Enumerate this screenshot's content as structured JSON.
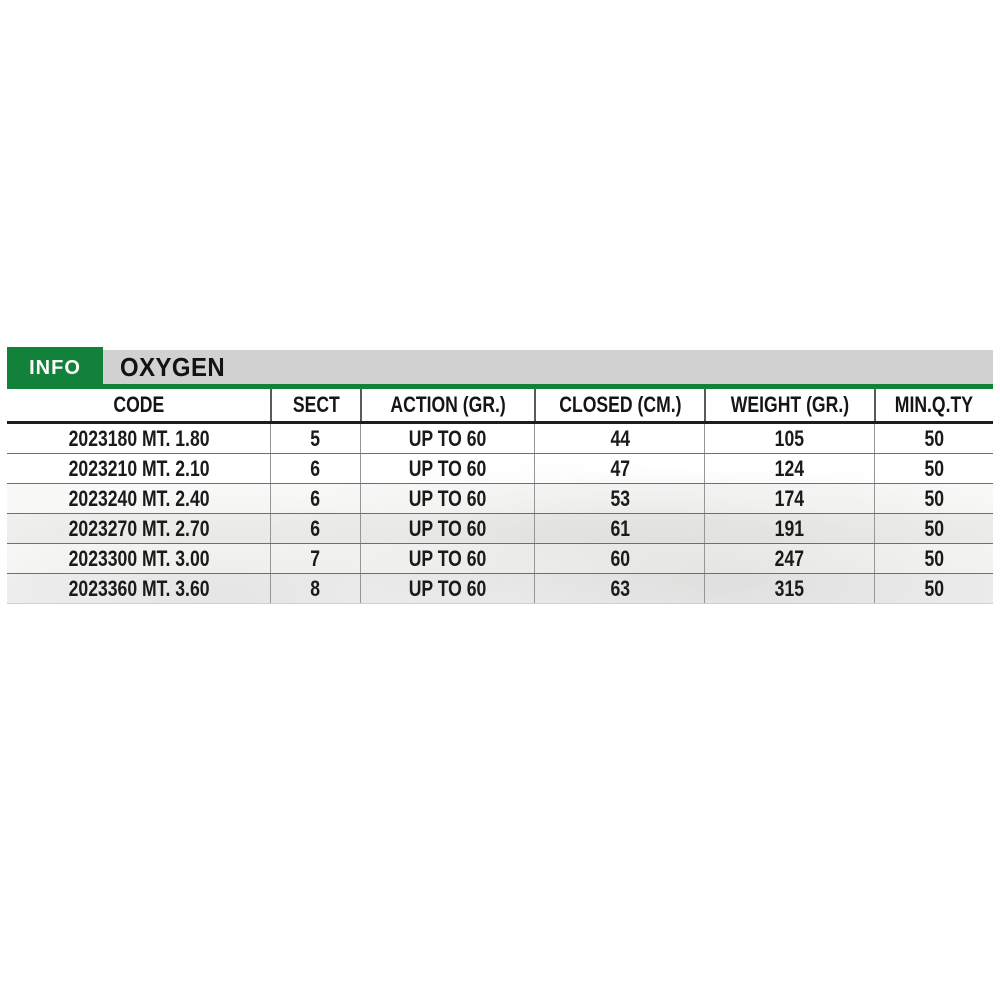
{
  "tab": {
    "label": "INFO"
  },
  "title": {
    "text": "OXYGEN"
  },
  "colors": {
    "accent_green": "#128139",
    "title_bar_gray": "#d1d1d1",
    "text_black": "#1a1a1a"
  },
  "table": {
    "columns": [
      "CODE",
      "SECT",
      "ACTION (GR.)",
      "CLOSED (CM.)",
      "WEIGHT (GR.)",
      "MIN.Q.TY"
    ],
    "rows": [
      [
        "2023180 MT. 1.80",
        "5",
        "UP TO 60",
        "44",
        "105",
        "50"
      ],
      [
        "2023210 MT. 2.10",
        "6",
        "UP TO 60",
        "47",
        "124",
        "50"
      ],
      [
        "2023240 MT. 2.40",
        "6",
        "UP TO 60",
        "53",
        "174",
        "50"
      ],
      [
        "2023270 MT. 2.70",
        "6",
        "UP TO 60",
        "61",
        "191",
        "50"
      ],
      [
        "2023300 MT. 3.00",
        "7",
        "UP TO 60",
        "60",
        "247",
        "50"
      ],
      [
        "2023360 MT. 3.60",
        "8",
        "UP TO 60",
        "63",
        "315",
        "50"
      ]
    ]
  }
}
